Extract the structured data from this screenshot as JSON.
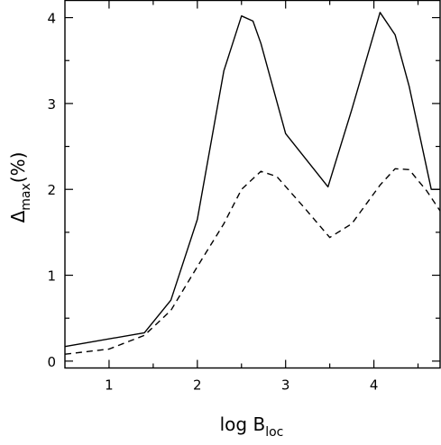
{
  "chart_data": {
    "type": "line",
    "xlabel": {
      "main": "log B",
      "sub": "loc"
    },
    "ylabel": {
      "main": "Δ",
      "sub": "max",
      "suffix": "(%)"
    },
    "xlim": [
      0.5,
      4.75
    ],
    "ylim": [
      -0.08,
      4.2
    ],
    "x_ticks": [
      1,
      2,
      3,
      4
    ],
    "x_minor_ticks": [
      1.5,
      2.5,
      3.5,
      4.5
    ],
    "y_ticks": [
      0,
      1,
      2,
      3,
      4
    ],
    "y_minor_ticks": [
      0.5,
      1.5,
      2.5,
      3.5
    ],
    "grid": false,
    "legend": "none",
    "series": [
      {
        "style": "solid",
        "color": "#000000",
        "x": [
          0.5,
          1.4,
          1.7,
          2.0,
          2.3,
          2.5,
          2.63,
          2.72,
          3.0,
          3.48,
          3.75,
          4.07,
          4.24,
          4.4,
          4.65,
          4.75
        ],
        "y": [
          0.17,
          0.33,
          0.71,
          1.65,
          3.38,
          4.02,
          3.96,
          3.7,
          2.65,
          2.03,
          2.93,
          4.06,
          3.8,
          3.2,
          2.0,
          2.0
        ]
      },
      {
        "style": "dashed",
        "color": "#000000",
        "x": [
          0.5,
          1.0,
          1.4,
          1.7,
          2.0,
          2.3,
          2.5,
          2.72,
          2.9,
          3.2,
          3.5,
          3.75,
          4.07,
          4.24,
          4.4,
          4.6,
          4.75
        ],
        "y": [
          0.08,
          0.14,
          0.3,
          0.59,
          1.1,
          1.6,
          2.0,
          2.21,
          2.15,
          1.8,
          1.44,
          1.6,
          2.05,
          2.24,
          2.23,
          1.98,
          1.75
        ]
      }
    ]
  }
}
